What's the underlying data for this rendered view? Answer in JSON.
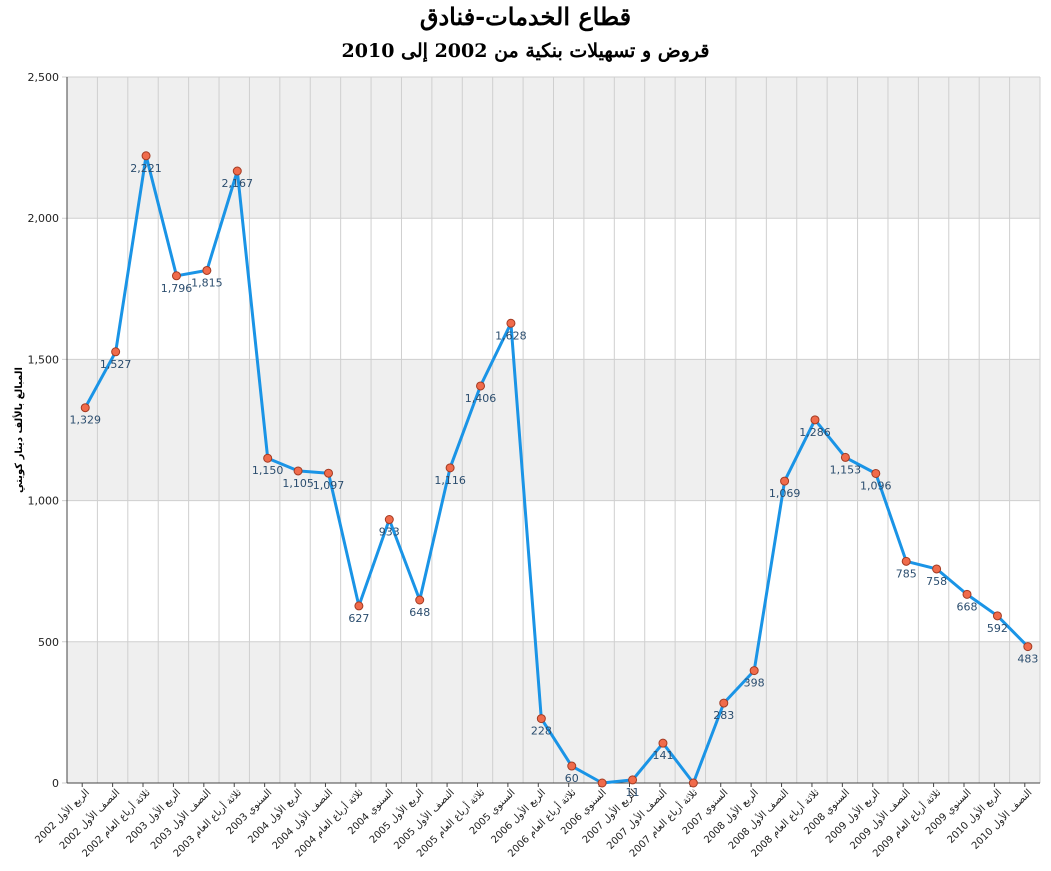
{
  "chart_data": {
    "type": "line",
    "title": "قطاع الخدمات-فنادق",
    "subtitle": "قروض و تسهيلات بنكية من 2002 إلى 2010",
    "xlabel": "",
    "ylabel": "المبالغ بالألف دينار كويتي",
    "ylim": [
      0,
      2500
    ],
    "yticks": [
      0,
      500,
      1000,
      1500,
      2000,
      2500
    ],
    "ytick_labels": [
      "0",
      "500",
      "1,000",
      "1,500",
      "2,000",
      "2,500"
    ],
    "grid": true,
    "categories": [
      "الربع الأول 2002",
      "النصف الأول 2002",
      "ثلاثة أرباع العام 2002",
      "الربع الأول 2003",
      "النصف الأول 2003",
      "ثلاثة أرباع العام 2003",
      "السنوي 2003",
      "الربع الأول 2004",
      "النصف الأول 2004",
      "ثلاثة أرباع العام 2004",
      "السنوي 2004",
      "الربع الأول 2005",
      "النصف الأول 2005",
      "ثلاثة أرباع العام 2005",
      "السنوي 2005",
      "الربع الأول 2006",
      "ثلاثة أرباع العام 2006",
      "السنوي 2006",
      "الربع الأول 2007",
      "النصف الأول 2007",
      "ثلاثة أرباع العام 2007",
      "السنوي 2007",
      "الربع الأول 2008",
      "النصف الأول 2008",
      "ثلاثة أرباع العام 2008",
      "السنوي 2008",
      "الربع الأول 2009",
      "النصف الأول 2009",
      "ثلاثة أرباع العام 2009",
      "السنوي 2009",
      "الربع الأول 2010",
      "النصف الأول 2010"
    ],
    "values": [
      1329,
      1527,
      2221,
      1796,
      1815,
      2167,
      1150,
      1105,
      1097,
      627,
      933,
      648,
      1116,
      1406,
      1628,
      228,
      60,
      0,
      11,
      141,
      0,
      283,
      398,
      1069,
      1286,
      1153,
      1096,
      785,
      758,
      668,
      592,
      483
    ],
    "data_labels": [
      "1,329",
      "1,527",
      "2,221",
      "1,796",
      "1,815",
      "2,167",
      "1,150",
      "1,105",
      "1,097",
      "627",
      "933",
      "648",
      "1,116",
      "1,406",
      "1,628",
      "228",
      "60",
      "",
      "11",
      "141",
      "",
      "283",
      "398",
      "1,069",
      "1,286",
      "1,153",
      "1,096",
      "785",
      "758",
      "668",
      "592",
      "483"
    ],
    "colors": {
      "line": "#1a94e6",
      "marker": "#f06b4b",
      "marker_stroke": "#a33a22",
      "band": "#efefef",
      "grid": "#cfcfcf",
      "label": "#2b4d6e"
    }
  }
}
